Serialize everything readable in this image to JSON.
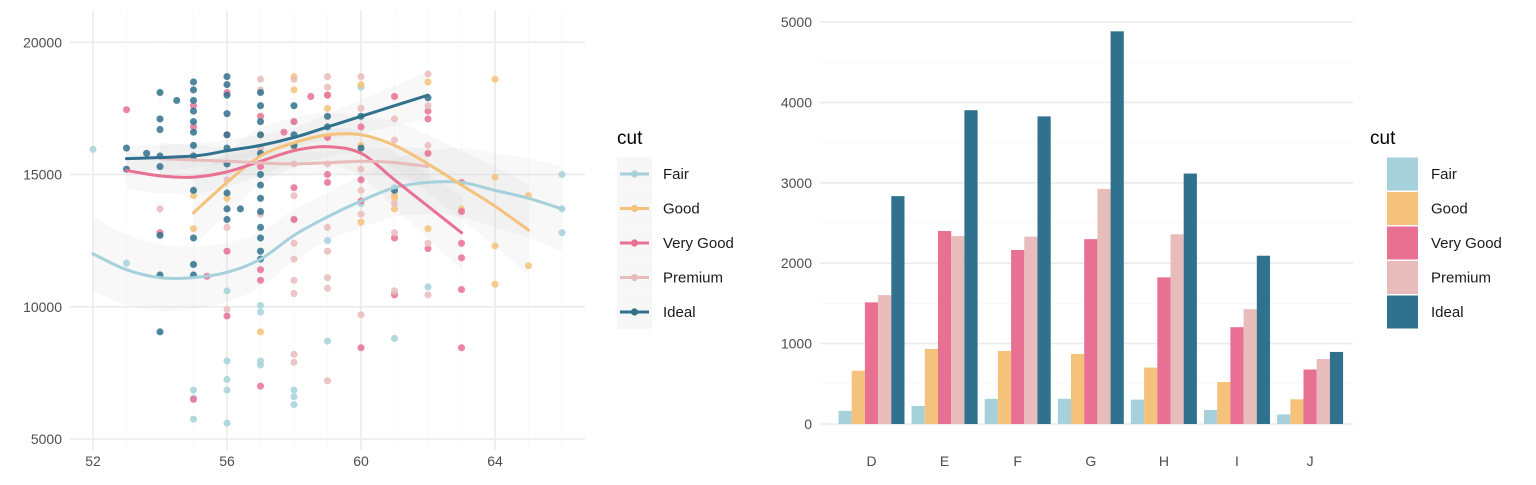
{
  "colors": {
    "Fair": "#a6d1da",
    "Good": "#f4c27a",
    "Very Good": "#e87093",
    "Premium": "#e9bcbc",
    "Ideal": "#30718d"
  },
  "chart_data": [
    {
      "type": "scatter",
      "xlabel": "",
      "ylabel": "",
      "xlim": [
        51.5,
        66.5
      ],
      "ylim": [
        4900,
        21200
      ],
      "x_ticks": [
        52,
        56,
        60,
        64
      ],
      "y_ticks": [
        5000,
        10000,
        15000,
        20000
      ],
      "grid": true,
      "legend": {
        "title": "cut",
        "position": "right",
        "entries": [
          "Fair",
          "Good",
          "Very Good",
          "Premium",
          "Ideal"
        ]
      },
      "smoother": {
        "method": "loess",
        "confidence_band": true
      },
      "series": [
        {
          "name": "Fair",
          "points": [
            [
              52,
              15950
            ],
            [
              53,
              11650
            ],
            [
              55,
              6850
            ],
            [
              55,
              6550
            ],
            [
              55,
              5750
            ],
            [
              56,
              10600
            ],
            [
              56,
              7950
            ],
            [
              56,
              7250
            ],
            [
              56,
              6850
            ],
            [
              56,
              5600
            ],
            [
              57,
              10050
            ],
            [
              57,
              9800
            ],
            [
              57,
              7950
            ],
            [
              57,
              7800
            ],
            [
              58,
              13300
            ],
            [
              58,
              6850
            ],
            [
              58,
              6600
            ],
            [
              58,
              6300
            ],
            [
              58,
              17000
            ],
            [
              59,
              12500
            ],
            [
              59,
              8700
            ],
            [
              60,
              18300
            ],
            [
              60,
              13900
            ],
            [
              61,
              14500
            ],
            [
              61,
              8800
            ],
            [
              62,
              10750
            ],
            [
              66,
              15000
            ],
            [
              66,
              13700
            ],
            [
              66,
              12800
            ]
          ],
          "smooth": [
            [
              52,
              12000
            ],
            [
              53,
              11400
            ],
            [
              54,
              11100
            ],
            [
              55,
              11100
            ],
            [
              56,
              11300
            ],
            [
              57,
              11800
            ],
            [
              58,
              12700
            ],
            [
              59,
              13400
            ],
            [
              60,
              14000
            ],
            [
              61,
              14500
            ],
            [
              62,
              14700
            ],
            [
              63,
              14700
            ],
            [
              64,
              14400
            ],
            [
              65,
              14100
            ],
            [
              66,
              13700
            ]
          ]
        },
        {
          "name": "Good",
          "points": [
            [
              55,
              14200
            ],
            [
              55,
              12950
            ],
            [
              56,
              14100
            ],
            [
              57,
              16500
            ],
            [
              57,
              9050
            ],
            [
              58,
              18700
            ],
            [
              58,
              18200
            ],
            [
              58,
              16000
            ],
            [
              59,
              17500
            ],
            [
              59,
              18000
            ],
            [
              60,
              18400
            ],
            [
              60,
              16100
            ],
            [
              60,
              13200
            ],
            [
              61,
              14100
            ],
            [
              61,
              13700
            ],
            [
              61,
              14200
            ],
            [
              62,
              18500
            ],
            [
              62,
              12950
            ],
            [
              63,
              13700
            ],
            [
              64,
              18600
            ],
            [
              64,
              14900
            ],
            [
              64,
              12300
            ],
            [
              64,
              10850
            ],
            [
              65,
              14200
            ],
            [
              65,
              11550
            ]
          ],
          "smooth": [
            [
              55,
              13550
            ],
            [
              56,
              14700
            ],
            [
              57,
              15700
            ],
            [
              58,
              16200
            ],
            [
              59,
              16500
            ],
            [
              60,
              16500
            ],
            [
              61,
              16100
            ],
            [
              62,
              15400
            ],
            [
              63,
              14600
            ],
            [
              64,
              13800
            ],
            [
              65,
              12900
            ]
          ]
        },
        {
          "name": "Very Good",
          "points": [
            [
              53,
              17450
            ],
            [
              54,
              12800
            ],
            [
              55,
              6500
            ],
            [
              55,
              16800
            ],
            [
              55,
              17600
            ],
            [
              55.4,
              11150
            ],
            [
              56,
              12100
            ],
            [
              56,
              9650
            ],
            [
              56,
              16500
            ],
            [
              56,
              18100
            ],
            [
              57,
              11000
            ],
            [
              57,
              11400
            ],
            [
              57,
              7000
            ],
            [
              57,
              15300
            ],
            [
              57,
              17200
            ],
            [
              57.7,
              16600
            ],
            [
              58,
              14500
            ],
            [
              58,
              13300
            ],
            [
              58,
              17000
            ],
            [
              58.5,
              17950
            ],
            [
              59,
              15000
            ],
            [
              59,
              14700
            ],
            [
              59,
              18000
            ],
            [
              59,
              16400
            ],
            [
              60,
              14800
            ],
            [
              60,
              14000
            ],
            [
              60,
              8450
            ],
            [
              60,
              16800
            ],
            [
              61,
              17950
            ],
            [
              61,
              10450
            ],
            [
              61,
              12600
            ],
            [
              62,
              17400
            ],
            [
              62,
              17100
            ],
            [
              62,
              15800
            ],
            [
              62,
              12200
            ],
            [
              63,
              12400
            ],
            [
              63,
              11850
            ],
            [
              63,
              10650
            ],
            [
              63,
              8450
            ],
            [
              63,
              14700
            ],
            [
              63,
              13600
            ]
          ],
          "smooth": [
            [
              53,
              15150
            ],
            [
              54,
              14950
            ],
            [
              55,
              14900
            ],
            [
              56,
              15100
            ],
            [
              57,
              15500
            ],
            [
              58,
              15900
            ],
            [
              59,
              16050
            ],
            [
              60,
              15800
            ],
            [
              61,
              14800
            ],
            [
              62,
              13800
            ],
            [
              63,
              12800
            ]
          ]
        },
        {
          "name": "Premium",
          "points": [
            [
              54,
              13700
            ],
            [
              55,
              15600
            ],
            [
              56,
              14800
            ],
            [
              56,
              13000
            ],
            [
              56,
              9900
            ],
            [
              57,
              18600
            ],
            [
              57,
              18200
            ],
            [
              57,
              16000
            ],
            [
              57,
              13500
            ],
            [
              58,
              18600
            ],
            [
              58,
              15400
            ],
            [
              58,
              14200
            ],
            [
              58,
              12400
            ],
            [
              58,
              11800
            ],
            [
              58,
              11000
            ],
            [
              58,
              10500
            ],
            [
              58,
              8200
            ],
            [
              58,
              7900
            ],
            [
              59,
              18700
            ],
            [
              59,
              18300
            ],
            [
              59,
              15400
            ],
            [
              59,
              13000
            ],
            [
              59,
              12100
            ],
            [
              59,
              11100
            ],
            [
              59,
              10700
            ],
            [
              59,
              7200
            ],
            [
              60,
              18700
            ],
            [
              60,
              17500
            ],
            [
              60,
              15200
            ],
            [
              60,
              14400
            ],
            [
              60,
              13500
            ],
            [
              60,
              9700
            ],
            [
              61,
              17100
            ],
            [
              61,
              16300
            ],
            [
              61,
              13900
            ],
            [
              61,
              12800
            ],
            [
              61,
              10600
            ],
            [
              62,
              18800
            ],
            [
              62,
              17600
            ],
            [
              62,
              16100
            ],
            [
              62,
              12400
            ],
            [
              62,
              10450
            ]
          ],
          "smooth": [
            [
              54,
              15600
            ],
            [
              56,
              15500
            ],
            [
              58,
              15400
            ],
            [
              60,
              15500
            ],
            [
              61,
              15450
            ],
            [
              62,
              15300
            ]
          ]
        },
        {
          "name": "Ideal",
          "points": [
            [
              53,
              16000
            ],
            [
              53,
              15200
            ],
            [
              53.6,
              15800
            ],
            [
              54,
              18100
            ],
            [
              54,
              17100
            ],
            [
              54,
              16700
            ],
            [
              54,
              15700
            ],
            [
              54,
              15300
            ],
            [
              54,
              12700
            ],
            [
              54,
              11200
            ],
            [
              54,
              9050
            ],
            [
              54.5,
              17800
            ],
            [
              55,
              18500
            ],
            [
              55,
              18200
            ],
            [
              55,
              17800
            ],
            [
              55,
              17400
            ],
            [
              55,
              17000
            ],
            [
              55,
              16600
            ],
            [
              55,
              16100
            ],
            [
              55,
              15700
            ],
            [
              55,
              14400
            ],
            [
              55,
              12600
            ],
            [
              55,
              11600
            ],
            [
              55,
              11200
            ],
            [
              56,
              18700
            ],
            [
              56,
              18400
            ],
            [
              56,
              18000
            ],
            [
              56,
              17300
            ],
            [
              56,
              16500
            ],
            [
              56,
              16000
            ],
            [
              56,
              15400
            ],
            [
              56,
              14300
            ],
            [
              56,
              13700
            ],
            [
              56,
              13300
            ],
            [
              56.4,
              13700
            ],
            [
              57,
              18100
            ],
            [
              57,
              17600
            ],
            [
              57,
              17000
            ],
            [
              57,
              16500
            ],
            [
              57,
              15800
            ],
            [
              57,
              15000
            ],
            [
              57,
              14600
            ],
            [
              57,
              14100
            ],
            [
              57,
              13600
            ],
            [
              57,
              13000
            ],
            [
              57,
              12600
            ],
            [
              57,
              12100
            ],
            [
              57,
              11800
            ],
            [
              58,
              17600
            ],
            [
              58,
              16500
            ],
            [
              58,
              16100
            ],
            [
              59,
              17200
            ],
            [
              59,
              16800
            ],
            [
              60,
              17200
            ],
            [
              60,
              16000
            ],
            [
              61,
              14400
            ],
            [
              62,
              17900
            ]
          ],
          "smooth": [
            [
              53,
              15600
            ],
            [
              55,
              15700
            ],
            [
              56,
              15900
            ],
            [
              57,
              16100
            ],
            [
              58,
              16400
            ],
            [
              59,
              16800
            ],
            [
              60,
              17200
            ],
            [
              61,
              17600
            ],
            [
              62,
              18000
            ]
          ]
        }
      ]
    },
    {
      "type": "bar",
      "xlabel": "",
      "ylabel": "",
      "ylim": [
        0,
        5000
      ],
      "y_ticks": [
        0,
        1000,
        2000,
        3000,
        4000,
        5000
      ],
      "grid": true,
      "categories": [
        "D",
        "E",
        "F",
        "G",
        "H",
        "I",
        "J"
      ],
      "legend": {
        "title": "cut",
        "position": "right",
        "entries": [
          "Fair",
          "Good",
          "Very Good",
          "Premium",
          "Ideal"
        ]
      },
      "series": [
        {
          "name": "Fair",
          "values": [
            163,
            224,
            312,
            314,
            303,
            175,
            119
          ]
        },
        {
          "name": "Good",
          "values": [
            662,
            933,
            909,
            871,
            702,
            522,
            307
          ]
        },
        {
          "name": "Very Good",
          "values": [
            1513,
            2400,
            2164,
            2299,
            1824,
            1204,
            678
          ]
        },
        {
          "name": "Premium",
          "values": [
            1603,
            2337,
            2331,
            2924,
            2360,
            1428,
            808
          ]
        },
        {
          "name": "Ideal",
          "values": [
            2834,
            3903,
            3826,
            4884,
            3115,
            2093,
            896
          ]
        }
      ]
    }
  ]
}
